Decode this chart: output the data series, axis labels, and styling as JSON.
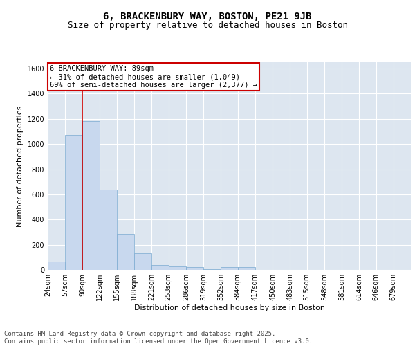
{
  "title1": "6, BRACKENBURY WAY, BOSTON, PE21 9JB",
  "title2": "Size of property relative to detached houses in Boston",
  "xlabel": "Distribution of detached houses by size in Boston",
  "ylabel": "Number of detached properties",
  "bar_color": "#c8d8ee",
  "bar_edge_color": "#7aaad0",
  "background_color": "#dde6f0",
  "grid_color": "#ffffff",
  "bins": [
    24,
    57,
    90,
    122,
    155,
    188,
    221,
    253,
    286,
    319,
    352,
    384,
    417,
    450,
    483,
    515,
    548,
    581,
    614,
    646,
    679,
    712
  ],
  "bin_labels": [
    "24sqm",
    "57sqm",
    "90sqm",
    "122sqm",
    "155sqm",
    "188sqm",
    "221sqm",
    "253sqm",
    "286sqm",
    "319sqm",
    "352sqm",
    "384sqm",
    "417sqm",
    "450sqm",
    "483sqm",
    "515sqm",
    "548sqm",
    "581sqm",
    "614sqm",
    "646sqm",
    "679sqm"
  ],
  "values": [
    65,
    1075,
    1185,
    640,
    285,
    130,
    40,
    25,
    20,
    5,
    20,
    20,
    0,
    0,
    0,
    0,
    0,
    0,
    0,
    0,
    0
  ],
  "ylim": [
    0,
    1650
  ],
  "yticks": [
    0,
    200,
    400,
    600,
    800,
    1000,
    1200,
    1400,
    1600
  ],
  "red_line_x": 89,
  "annotation_line1": "6 BRACKENBURY WAY: 89sqm",
  "annotation_line2": "← 31% of detached houses are smaller (1,049)",
  "annotation_line3": "69% of semi-detached houses are larger (2,377) →",
  "annotation_box_color": "#ffffff",
  "annotation_box_edge": "#cc0000",
  "footer1": "Contains HM Land Registry data © Crown copyright and database right 2025.",
  "footer2": "Contains public sector information licensed under the Open Government Licence v3.0.",
  "title1_fontsize": 10,
  "title2_fontsize": 9,
  "axis_fontsize": 8,
  "tick_fontsize": 7,
  "annotation_fontsize": 7.5,
  "footer_fontsize": 6.5
}
